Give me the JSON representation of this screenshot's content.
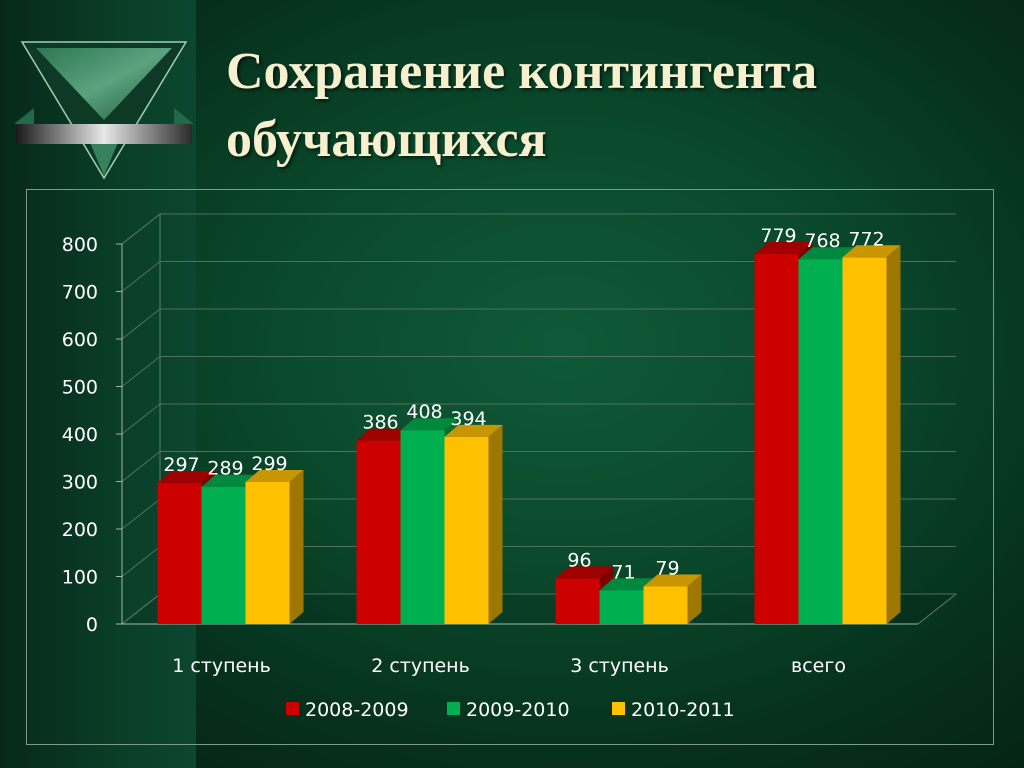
{
  "slide": {
    "title_line1": "Сохранение контингента",
    "title_line2": "обучающихся"
  },
  "chart_data": {
    "type": "bar",
    "categories": [
      "1 ступень",
      "2 ступень",
      "3 ступень",
      "всего"
    ],
    "series": [
      {
        "name": "2008-2009",
        "values": [
          297,
          386,
          96,
          779
        ],
        "color": "#cc0000"
      },
      {
        "name": "2009-2010",
        "values": [
          289,
          408,
          71,
          768
        ],
        "color": "#00b050"
      },
      {
        "name": "2010-2011",
        "values": [
          299,
          394,
          79,
          772
        ],
        "color": "#ffc000"
      }
    ],
    "ylim": [
      0,
      800
    ],
    "yticks": [
      0,
      100,
      200,
      300,
      400,
      500,
      600,
      700,
      800
    ],
    "grid": true,
    "legend": "bottom",
    "style": "3d-clustered-column"
  }
}
